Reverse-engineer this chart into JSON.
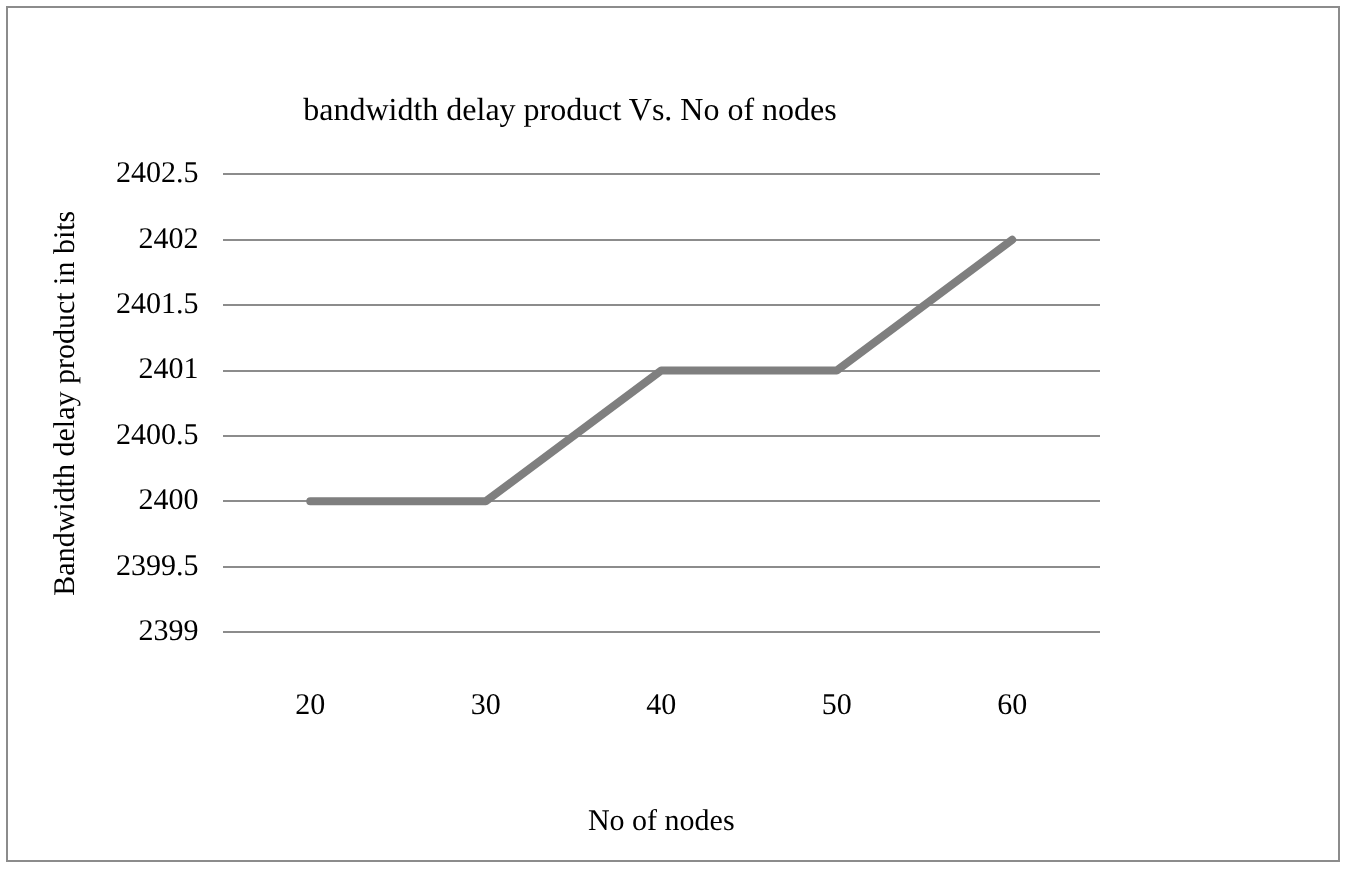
{
  "chart_data": {
    "type": "line",
    "title": "bandwidth delay product Vs. No of nodes",
    "xlabel": "No of nodes",
    "ylabel": "Bandwidth delay product in bits",
    "categories": [
      "20",
      "30",
      "40",
      "50",
      "60"
    ],
    "series": [
      {
        "color": "#7f7f7f",
        "values": [
          2400,
          2400,
          2401,
          2401,
          2402
        ]
      }
    ],
    "ylim": [
      2399,
      2402.5
    ],
    "yticks": [
      2399,
      2399.5,
      2400,
      2400.5,
      2401,
      2401.5,
      2402,
      2402.5
    ],
    "grid": "y",
    "legend": false,
    "marker": "none",
    "line_style": "solid"
  }
}
